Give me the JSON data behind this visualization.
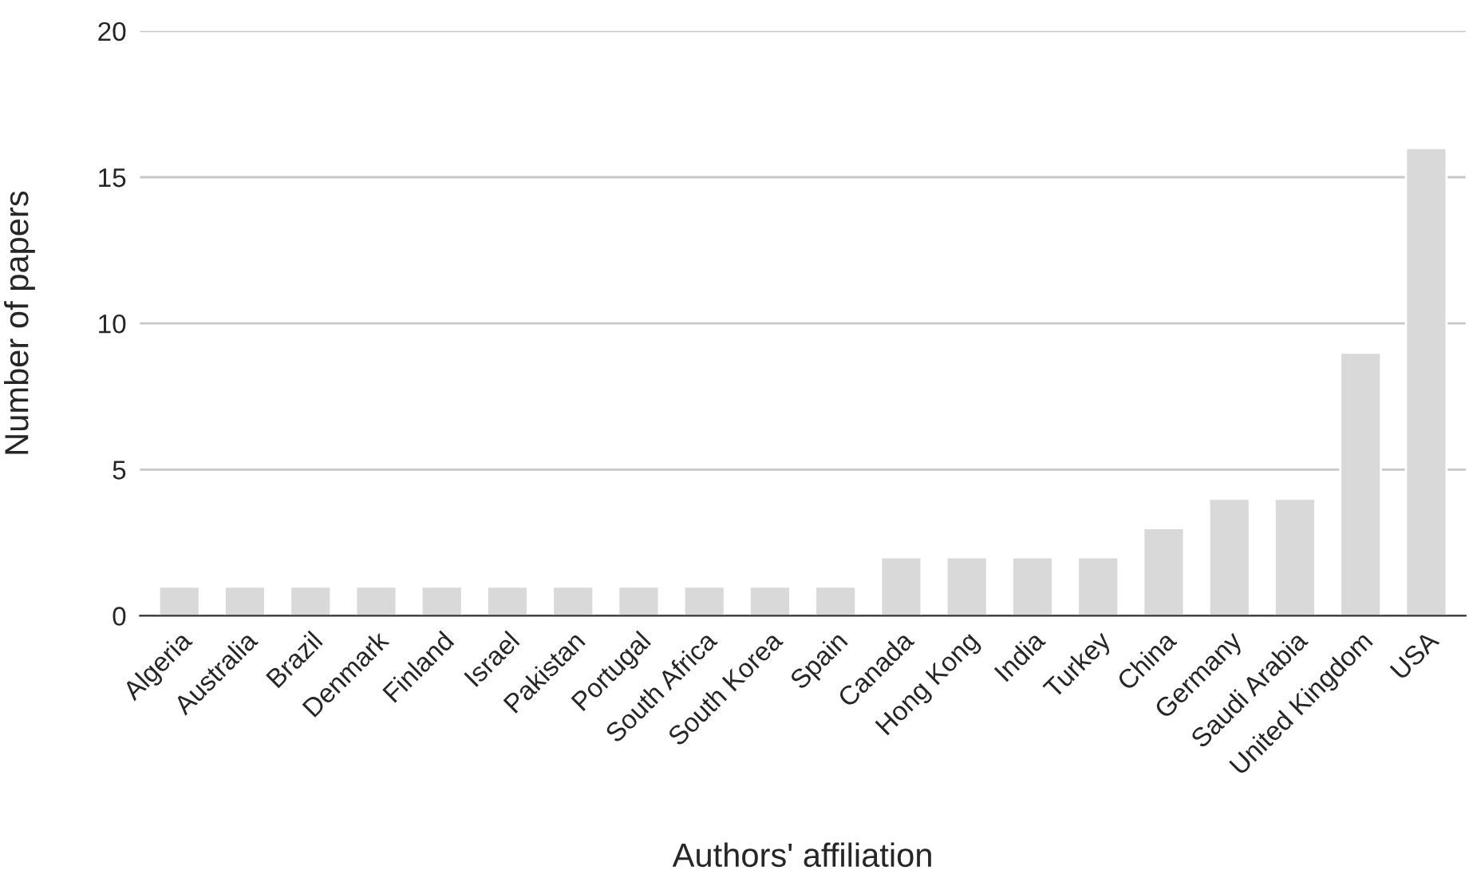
{
  "chart_data": {
    "type": "bar",
    "xlabel": "Authors' affiliation",
    "ylabel": "Number of papers",
    "categories": [
      "Algeria",
      "Australia",
      "Brazil",
      "Denmark",
      "Finland",
      "Israel",
      "Pakistan",
      "Portugal",
      "South Africa",
      "South Korea",
      "Spain",
      "Canada",
      "Hong Kong",
      "India",
      "Turkey",
      "China",
      "Germany",
      "Saudi Arabia",
      "United Kingdom",
      "USA"
    ],
    "values": [
      1,
      1,
      1,
      1,
      1,
      1,
      1,
      1,
      1,
      1,
      1,
      2,
      2,
      2,
      2,
      3,
      4,
      4,
      9,
      16
    ],
    "color": "#d9d9d9",
    "ylim": [
      0,
      20
    ],
    "yticks": [
      0,
      5,
      10,
      15,
      20
    ],
    "grid": "y"
  }
}
